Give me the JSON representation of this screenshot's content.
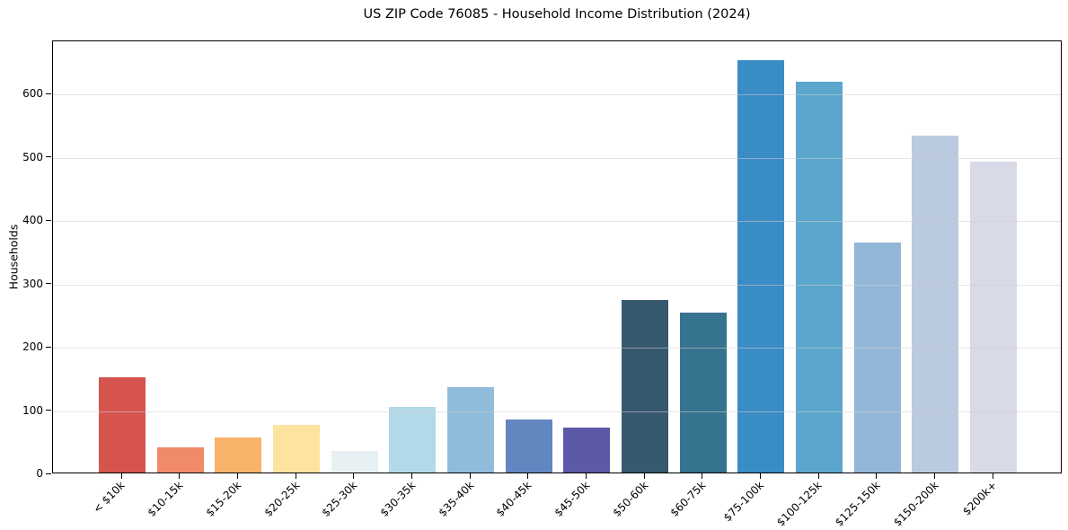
{
  "chart_data": {
    "type": "bar",
    "title": "US ZIP Code 76085 - Household Income Distribution (2024)",
    "xlabel": "",
    "ylabel": "Households",
    "categories": [
      "< $10k",
      "$10-15k",
      "$15-20k",
      "$20-25k",
      "$25-30k",
      "$30-35k",
      "$35-40k",
      "$40-45k",
      "$45-50k",
      "$50-60k",
      "$60-75k",
      "$75-100k",
      "$100-125k",
      "$125-150k",
      "$150-200k",
      "$200k+"
    ],
    "values": [
      150,
      40,
      56,
      75,
      34,
      103,
      135,
      84,
      71,
      273,
      252,
      652,
      617,
      363,
      532,
      491
    ],
    "bar_colors": [
      "#d5544e",
      "#f08a68",
      "#f9b36a",
      "#fde39e",
      "#e7f1f4",
      "#b2d9e7",
      "#8fbcdb",
      "#6286c0",
      "#5c59a9",
      "#36596f",
      "#36738f",
      "#3a8cc4",
      "#5ca5cd",
      "#92b6d8",
      "#bacbe0",
      "#d9dae8"
    ],
    "yticks": [
      0,
      100,
      200,
      300,
      400,
      500,
      600
    ],
    "ylim": [
      0,
      684
    ],
    "grid": "horizontal-over-bars",
    "legend": "none",
    "axis_color": "#000000",
    "background_color": "#ffffff"
  }
}
